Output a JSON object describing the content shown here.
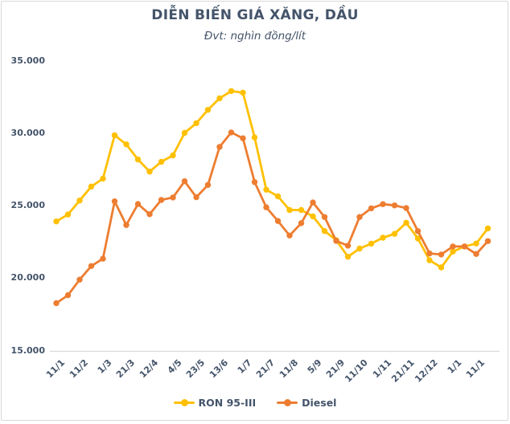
{
  "chart_data": {
    "type": "line",
    "title": "DIỄN BIẾN GIÁ XĂNG, DẦU",
    "subtitle": "Đvt: nghìn đồng/lít",
    "unit": "nghìn đồng/lít",
    "grid": false,
    "legend_position": "bottom",
    "y_ticks": [
      "35.000",
      "30.000",
      "25.000",
      "20.000",
      "15.000"
    ],
    "ylim": [
      15,
      35
    ],
    "x_tick_labels": [
      "11/1",
      "11/2",
      "1/3",
      "21/3",
      "12/4",
      "4/5",
      "23/5",
      "13/6",
      "1/7",
      "21/7",
      "11/8",
      "5/9",
      "21/9",
      "11/10",
      "1/11",
      "21/11",
      "12/12",
      "1/1",
      "11/1"
    ],
    "x_label_every": 2,
    "n_points": 38,
    "series": [
      {
        "name": "RON 95-III",
        "color": "#FFC000",
        "values": [
          23.876,
          24.36,
          25.322,
          26.287,
          26.834,
          29.824,
          29.192,
          28.153,
          27.317,
          27.992,
          28.434,
          29.988,
          30.657,
          31.578,
          32.375,
          32.873,
          32.763,
          29.675,
          26.07,
          25.608,
          24.669,
          24.669,
          24.23,
          23.215,
          22.584,
          21.443,
          22.007,
          22.344,
          22.756,
          23.023,
          23.787,
          22.704,
          21.2,
          20.706,
          21.8,
          22.15,
          22.35,
          23.4
        ]
      },
      {
        "name": "Diesel",
        "color": "#ED7D31",
        "values": [
          18.239,
          18.79,
          19.865,
          20.8,
          21.31,
          25.268,
          23.633,
          25.08,
          24.38,
          25.359,
          25.53,
          26.65,
          25.55,
          26.394,
          29.02,
          30.019,
          29.615,
          26.593,
          24.858,
          23.908,
          22.908,
          23.759,
          25.188,
          24.18,
          22.536,
          22.208,
          24.187,
          24.783,
          25.07,
          24.983,
          24.801,
          23.213,
          21.67,
          21.601,
          22.151,
          22.151,
          21.634,
          22.52
        ]
      }
    ],
    "colors": {
      "text": "#44546A",
      "axis_line": "#D9D9D9"
    }
  }
}
